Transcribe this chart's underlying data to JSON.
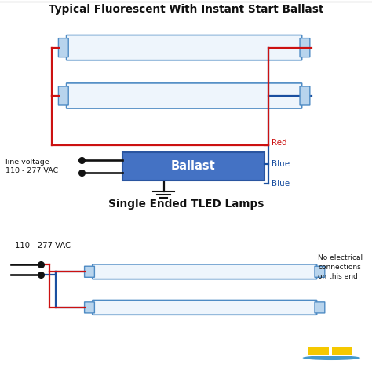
{
  "title_top": "Typical Fluorescent With Instant Start Ballast",
  "title_bottom": "Single Ended TLED Lamps",
  "bg_top": "#daeaf7",
  "bg_bottom": "#daeaf7",
  "bg_fig": "#ffffff",
  "divider_color": "#111111",
  "tube_face": "#eef5fc",
  "tube_border": "#4e8bc4",
  "tube_cap_face": "#b8d4ed",
  "ballast_face": "#4472c4",
  "ballast_border": "#2a55a0",
  "ballast_text": "Ballast",
  "ballast_text_color": "#ffffff",
  "red": "#cc1111",
  "blue": "#1a4fa0",
  "black": "#111111",
  "lv_label": "line voltage\n110 - 277 VAC",
  "red_label": "Red",
  "blue1_label": "Blue",
  "blue2_label": "Blue",
  "vac_label": "110 - 277 VAC",
  "no_conn_label": "No electrical\nconnections\non this end",
  "logo_yellow": "#f5c800",
  "logo_blue": "#4499cc"
}
